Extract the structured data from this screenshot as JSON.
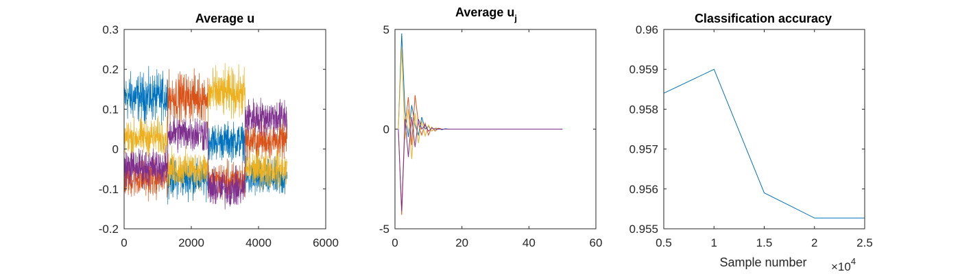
{
  "colors": {
    "blue": "#0072BD",
    "orange": "#D95319",
    "yellow": "#EDB120",
    "purple": "#7E2F8E",
    "axis": "#262626"
  },
  "chart_data": [
    {
      "type": "line",
      "title": "Average u",
      "xlabel": "",
      "ylabel": "",
      "xlim": [
        0,
        6000
      ],
      "ylim": [
        -0.2,
        0.3
      ],
      "xticks": [
        "0",
        "2000",
        "4000",
        "6000"
      ],
      "yticks": [
        "-0.2",
        "-0.1",
        "0",
        "0.1",
        "0.2",
        "0.3"
      ],
      "x_range": [
        0,
        4850
      ],
      "segments": [
        {
          "x_start": 0,
          "x_end": 1300,
          "levels": {
            "blue": 0.13,
            "orange": -0.075,
            "yellow": 0.03,
            "purple": -0.045
          }
        },
        {
          "x_start": 1300,
          "x_end": 2500,
          "levels": {
            "blue": -0.075,
            "orange": 0.13,
            "yellow": -0.05,
            "purple": 0.04
          }
        },
        {
          "x_start": 2500,
          "x_end": 3600,
          "levels": {
            "blue": 0.02,
            "orange": -0.08,
            "yellow": 0.14,
            "purple": -0.1
          }
        },
        {
          "x_start": 3600,
          "x_end": 4850,
          "levels": {
            "blue": -0.075,
            "orange": 0.02,
            "yellow": -0.05,
            "purple": 0.08
          }
        }
      ],
      "series": [
        {
          "color": "blue"
        },
        {
          "color": "orange"
        },
        {
          "color": "yellow"
        },
        {
          "color": "purple"
        }
      ],
      "grid": false
    },
    {
      "type": "line",
      "title": "Average u",
      "title_subscript": "j",
      "xlabel": "",
      "ylabel": "",
      "xlim": [
        0,
        60
      ],
      "ylim": [
        -5,
        5
      ],
      "xticks": [
        "0",
        "20",
        "40",
        "60"
      ],
      "yticks": [
        "-5",
        "0",
        "5"
      ],
      "x": [
        1,
        2,
        3,
        4,
        5,
        6,
        7,
        8,
        9,
        10,
        11,
        12,
        13,
        14,
        15,
        16,
        17,
        18,
        19,
        20,
        25,
        30,
        35,
        40,
        45,
        50
      ],
      "series": [
        {
          "color": "blue",
          "values": [
            0,
            4.8,
            0.9,
            -0.4,
            1.2,
            0.2,
            -0.3,
            0.6,
            0.0,
            0.15,
            -0.1,
            0.05,
            0.03,
            -0.03,
            0.02,
            0.0,
            0.0,
            0.0,
            0.0,
            0.0,
            0.0,
            0.0,
            0.0,
            0.0,
            0.0,
            0.0
          ]
        },
        {
          "color": "orange",
          "values": [
            0,
            -4.3,
            0.2,
            1.6,
            -0.8,
            1.7,
            0.3,
            -0.3,
            0.3,
            -0.3,
            0.1,
            -0.1,
            0.05,
            0.0,
            0.0,
            0.0,
            0.0,
            0.0,
            0.0,
            0.0,
            0.0,
            0.0,
            0.0,
            0.0,
            0.0,
            0.0
          ]
        },
        {
          "color": "yellow",
          "values": [
            0,
            4.1,
            -0.5,
            1.0,
            -1.5,
            0.8,
            -0.7,
            0.4,
            -0.35,
            0.2,
            -0.1,
            0.05,
            0.0,
            0.0,
            0.0,
            0.0,
            0.0,
            0.0,
            0.0,
            0.0,
            0.0,
            0.0,
            0.0,
            0.0,
            0.0,
            0.0
          ]
        },
        {
          "color": "purple",
          "values": [
            0,
            -4.1,
            0.5,
            -1.4,
            0.6,
            -0.9,
            0.5,
            0.0,
            0.2,
            -0.1,
            0.05,
            0.0,
            0.0,
            0.0,
            0.0,
            0.0,
            0.0,
            0.0,
            0.0,
            0.0,
            0.0,
            0.0,
            0.0,
            0.0,
            0.0,
            0.0
          ]
        }
      ],
      "grid": false
    },
    {
      "type": "line",
      "title": "Classification accuracy",
      "xlabel": "Sample number",
      "x_exponent_label": "×10",
      "x_exponent": "4",
      "ylabel": "",
      "xlim": [
        0.5,
        2.5
      ],
      "ylim": [
        0.955,
        0.96
      ],
      "xticks": [
        "0.5",
        "1",
        "1.5",
        "2",
        "2.5"
      ],
      "yticks": [
        "0.955",
        "0.956",
        "0.957",
        "0.958",
        "0.959",
        "0.96"
      ],
      "x": [
        0.5,
        1,
        1.5,
        2,
        2.5
      ],
      "series": [
        {
          "color": "blue",
          "values": [
            0.9584,
            0.959,
            0.9559,
            0.95527,
            0.95527
          ]
        }
      ],
      "grid": false
    }
  ]
}
